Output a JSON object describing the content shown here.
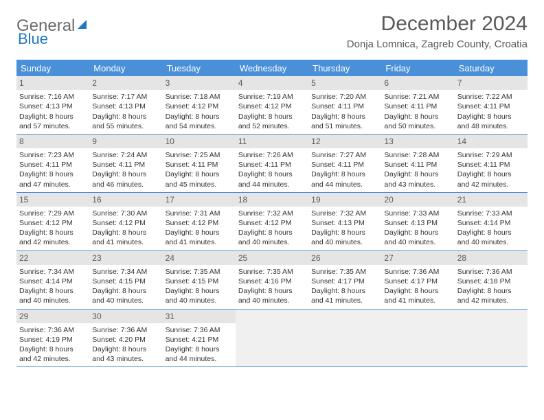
{
  "brand": {
    "part1": "General",
    "part2": "Blue"
  },
  "title": "December 2024",
  "location": "Donja Lomnica, Zagreb County, Croatia",
  "colors": {
    "header_bg": "#4a90d9",
    "header_text": "#ffffff",
    "divider": "#4a90d9",
    "daynum_bg": "#e5e5e5",
    "text": "#333333",
    "title_text": "#595959",
    "brand_gray": "#6b6b6b",
    "brand_blue": "#1f78c4",
    "empty_bg": "#f0f0f0"
  },
  "weekdays": [
    "Sunday",
    "Monday",
    "Tuesday",
    "Wednesday",
    "Thursday",
    "Friday",
    "Saturday"
  ],
  "weeks": [
    [
      {
        "n": "1",
        "sr": "7:16 AM",
        "ss": "4:13 PM",
        "dl": "8 hours and 57 minutes."
      },
      {
        "n": "2",
        "sr": "7:17 AM",
        "ss": "4:13 PM",
        "dl": "8 hours and 55 minutes."
      },
      {
        "n": "3",
        "sr": "7:18 AM",
        "ss": "4:12 PM",
        "dl": "8 hours and 54 minutes."
      },
      {
        "n": "4",
        "sr": "7:19 AM",
        "ss": "4:12 PM",
        "dl": "8 hours and 52 minutes."
      },
      {
        "n": "5",
        "sr": "7:20 AM",
        "ss": "4:11 PM",
        "dl": "8 hours and 51 minutes."
      },
      {
        "n": "6",
        "sr": "7:21 AM",
        "ss": "4:11 PM",
        "dl": "8 hours and 50 minutes."
      },
      {
        "n": "7",
        "sr": "7:22 AM",
        "ss": "4:11 PM",
        "dl": "8 hours and 48 minutes."
      }
    ],
    [
      {
        "n": "8",
        "sr": "7:23 AM",
        "ss": "4:11 PM",
        "dl": "8 hours and 47 minutes."
      },
      {
        "n": "9",
        "sr": "7:24 AM",
        "ss": "4:11 PM",
        "dl": "8 hours and 46 minutes."
      },
      {
        "n": "10",
        "sr": "7:25 AM",
        "ss": "4:11 PM",
        "dl": "8 hours and 45 minutes."
      },
      {
        "n": "11",
        "sr": "7:26 AM",
        "ss": "4:11 PM",
        "dl": "8 hours and 44 minutes."
      },
      {
        "n": "12",
        "sr": "7:27 AM",
        "ss": "4:11 PM",
        "dl": "8 hours and 44 minutes."
      },
      {
        "n": "13",
        "sr": "7:28 AM",
        "ss": "4:11 PM",
        "dl": "8 hours and 43 minutes."
      },
      {
        "n": "14",
        "sr": "7:29 AM",
        "ss": "4:11 PM",
        "dl": "8 hours and 42 minutes."
      }
    ],
    [
      {
        "n": "15",
        "sr": "7:29 AM",
        "ss": "4:12 PM",
        "dl": "8 hours and 42 minutes."
      },
      {
        "n": "16",
        "sr": "7:30 AM",
        "ss": "4:12 PM",
        "dl": "8 hours and 41 minutes."
      },
      {
        "n": "17",
        "sr": "7:31 AM",
        "ss": "4:12 PM",
        "dl": "8 hours and 41 minutes."
      },
      {
        "n": "18",
        "sr": "7:32 AM",
        "ss": "4:12 PM",
        "dl": "8 hours and 40 minutes."
      },
      {
        "n": "19",
        "sr": "7:32 AM",
        "ss": "4:13 PM",
        "dl": "8 hours and 40 minutes."
      },
      {
        "n": "20",
        "sr": "7:33 AM",
        "ss": "4:13 PM",
        "dl": "8 hours and 40 minutes."
      },
      {
        "n": "21",
        "sr": "7:33 AM",
        "ss": "4:14 PM",
        "dl": "8 hours and 40 minutes."
      }
    ],
    [
      {
        "n": "22",
        "sr": "7:34 AM",
        "ss": "4:14 PM",
        "dl": "8 hours and 40 minutes."
      },
      {
        "n": "23",
        "sr": "7:34 AM",
        "ss": "4:15 PM",
        "dl": "8 hours and 40 minutes."
      },
      {
        "n": "24",
        "sr": "7:35 AM",
        "ss": "4:15 PM",
        "dl": "8 hours and 40 minutes."
      },
      {
        "n": "25",
        "sr": "7:35 AM",
        "ss": "4:16 PM",
        "dl": "8 hours and 40 minutes."
      },
      {
        "n": "26",
        "sr": "7:35 AM",
        "ss": "4:17 PM",
        "dl": "8 hours and 41 minutes."
      },
      {
        "n": "27",
        "sr": "7:36 AM",
        "ss": "4:17 PM",
        "dl": "8 hours and 41 minutes."
      },
      {
        "n": "28",
        "sr": "7:36 AM",
        "ss": "4:18 PM",
        "dl": "8 hours and 42 minutes."
      }
    ],
    [
      {
        "n": "29",
        "sr": "7:36 AM",
        "ss": "4:19 PM",
        "dl": "8 hours and 42 minutes."
      },
      {
        "n": "30",
        "sr": "7:36 AM",
        "ss": "4:20 PM",
        "dl": "8 hours and 43 minutes."
      },
      {
        "n": "31",
        "sr": "7:36 AM",
        "ss": "4:21 PM",
        "dl": "8 hours and 44 minutes."
      },
      null,
      null,
      null,
      null
    ]
  ],
  "labels": {
    "sunrise": "Sunrise:",
    "sunset": "Sunset:",
    "daylight": "Daylight:"
  }
}
